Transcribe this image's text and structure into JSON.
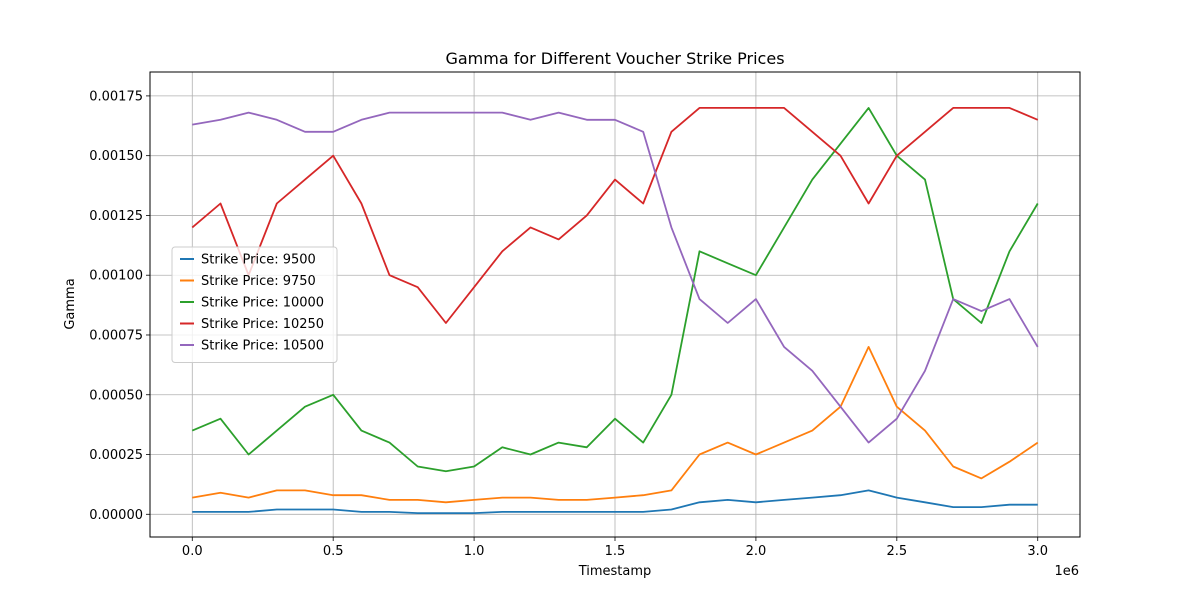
{
  "chart_data": {
    "type": "line",
    "title": "Gamma for Different Voucher Strike Prices",
    "xlabel": "Timestamp",
    "ylabel": "Gamma",
    "x_offset_label": "1e6",
    "xlim": [
      -0.15,
      3.15
    ],
    "ylim": [
      -9.5e-05,
      0.00185
    ],
    "xticks": [
      0.0,
      0.5,
      1.0,
      1.5,
      2.0,
      2.5,
      3.0
    ],
    "xtick_labels": [
      "0.0",
      "0.5",
      "1.0",
      "1.5",
      "2.0",
      "2.5",
      "3.0"
    ],
    "yticks": [
      0.0,
      0.00025,
      0.0005,
      0.00075,
      0.001,
      0.00125,
      0.0015,
      0.00175
    ],
    "ytick_labels": [
      "0.00000",
      "0.00025",
      "0.00050",
      "0.00075",
      "0.00100",
      "0.00125",
      "0.00150",
      "0.00175"
    ],
    "grid": true,
    "legend_position": "center-left",
    "x": [
      0.0,
      0.1,
      0.2,
      0.3,
      0.4,
      0.5,
      0.6,
      0.7,
      0.8,
      0.9,
      1.0,
      1.1,
      1.2,
      1.3,
      1.4,
      1.5,
      1.6,
      1.7,
      1.8,
      1.9,
      2.0,
      2.1,
      2.2,
      2.3,
      2.4,
      2.5,
      2.6,
      2.7,
      2.8,
      2.9,
      3.0
    ],
    "series": [
      {
        "name": "Strike Price: 9500",
        "color": "#1f77b4",
        "values": [
          1e-05,
          1e-05,
          1e-05,
          2e-05,
          2e-05,
          2e-05,
          1e-05,
          1e-05,
          5e-06,
          5e-06,
          5e-06,
          1e-05,
          1e-05,
          1e-05,
          1e-05,
          1e-05,
          1e-05,
          2e-05,
          5e-05,
          6e-05,
          5e-05,
          6e-05,
          7e-05,
          8e-05,
          0.0001,
          7e-05,
          5e-05,
          3e-05,
          3e-05,
          4e-05,
          4e-05
        ]
      },
      {
        "name": "Strike Price: 9750",
        "color": "#ff7f0e",
        "values": [
          7e-05,
          9e-05,
          7e-05,
          0.0001,
          0.0001,
          8e-05,
          8e-05,
          6e-05,
          6e-05,
          5e-05,
          6e-05,
          7e-05,
          7e-05,
          6e-05,
          6e-05,
          7e-05,
          8e-05,
          0.0001,
          0.00025,
          0.0003,
          0.00025,
          0.0003,
          0.00035,
          0.00045,
          0.0007,
          0.00045,
          0.00035,
          0.0002,
          0.00015,
          0.00022,
          0.0003
        ]
      },
      {
        "name": "Strike Price: 10000",
        "color": "#2ca02c",
        "values": [
          0.00035,
          0.0004,
          0.00025,
          0.00035,
          0.00045,
          0.0005,
          0.00035,
          0.0003,
          0.0002,
          0.00018,
          0.0002,
          0.00028,
          0.00025,
          0.0003,
          0.00028,
          0.0004,
          0.0003,
          0.0005,
          0.0011,
          0.00105,
          0.001,
          0.0012,
          0.0014,
          0.00155,
          0.0017,
          0.0015,
          0.0014,
          0.0009,
          0.0008,
          0.0011,
          0.0013
        ]
      },
      {
        "name": "Strike Price: 10250",
        "color": "#d62728",
        "values": [
          0.0012,
          0.0013,
          0.001,
          0.0013,
          0.0014,
          0.0015,
          0.0013,
          0.001,
          0.00095,
          0.0008,
          0.00095,
          0.0011,
          0.0012,
          0.00115,
          0.00125,
          0.0014,
          0.0013,
          0.0016,
          0.0017,
          0.0017,
          0.0017,
          0.0017,
          0.0016,
          0.0015,
          0.0013,
          0.0015,
          0.0016,
          0.0017,
          0.0017,
          0.0017,
          0.00165
        ]
      },
      {
        "name": "Strike Price: 10500",
        "color": "#9467bd",
        "values": [
          0.00163,
          0.00165,
          0.00168,
          0.00165,
          0.0016,
          0.0016,
          0.00165,
          0.00168,
          0.00168,
          0.00168,
          0.00168,
          0.00168,
          0.00165,
          0.00168,
          0.00165,
          0.00165,
          0.0016,
          0.0012,
          0.0009,
          0.0008,
          0.0009,
          0.0007,
          0.0006,
          0.00045,
          0.0003,
          0.0004,
          0.0006,
          0.0009,
          0.00085,
          0.0009,
          0.0007
        ]
      }
    ]
  }
}
